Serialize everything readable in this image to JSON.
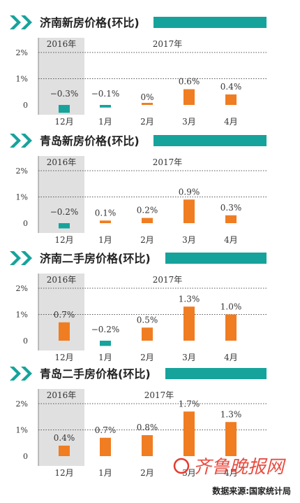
{
  "colors": {
    "accent": "#16a39b",
    "bar_positive": "#f07d22",
    "bar_negative": "#16a39b",
    "shade": "#e0e0e0",
    "text": "#333333"
  },
  "year_labels": {
    "prev": "2016年",
    "curr": "2017年"
  },
  "chart_data": [
    {
      "type": "bar",
      "title": "济南新房价格(环比)",
      "categories": [
        "12月",
        "1月",
        "2月",
        "3月",
        "4月"
      ],
      "values": [
        -0.3,
        -0.1,
        0,
        0.6,
        0.4
      ],
      "value_labels": [
        "−0.3%",
        "−0.1%",
        "0%",
        "0.6%",
        "0.4%"
      ],
      "yticks": [
        "2%",
        "1%",
        "0"
      ],
      "ylim": [
        -0.35,
        2
      ]
    },
    {
      "type": "bar",
      "title": "青岛新房价格(环比)",
      "categories": [
        "12月",
        "1月",
        "2月",
        "3月",
        "4月"
      ],
      "values": [
        -0.2,
        0.1,
        0.2,
        0.9,
        0.3
      ],
      "value_labels": [
        "−0.2%",
        "0.1%",
        "0.2%",
        "0.9%",
        "0.3%"
      ],
      "yticks": [
        "2%",
        "1%",
        "0"
      ],
      "ylim": [
        -0.35,
        2
      ]
    },
    {
      "type": "bar",
      "title": "济南二手房价格(环比)",
      "categories": [
        "12月",
        "1月",
        "2月",
        "3月",
        "4月"
      ],
      "values": [
        0.7,
        -0.2,
        0.5,
        1.3,
        1.0
      ],
      "value_labels": [
        "0.7%",
        "−0.2%",
        "0.5%",
        "1.3%",
        "1.0%"
      ],
      "yticks": [
        "2%",
        "1%",
        "0"
      ],
      "ylim": [
        -0.35,
        2
      ]
    },
    {
      "type": "bar",
      "title": "青岛二手房价格(环比)",
      "categories": [
        "12月",
        "1月",
        "2月",
        "3月",
        "4月"
      ],
      "values": [
        0.4,
        0.7,
        0.8,
        1.7,
        1.3
      ],
      "value_labels": [
        "0.4%",
        "0.7%",
        "0.8%",
        "1.7%",
        "1.3%"
      ],
      "yticks": [
        "2%",
        "1%",
        "0"
      ],
      "ylim": [
        -0.35,
        2
      ]
    }
  ],
  "watermark": "齐鲁晚报网",
  "source": "数据来源:国家统计局"
}
